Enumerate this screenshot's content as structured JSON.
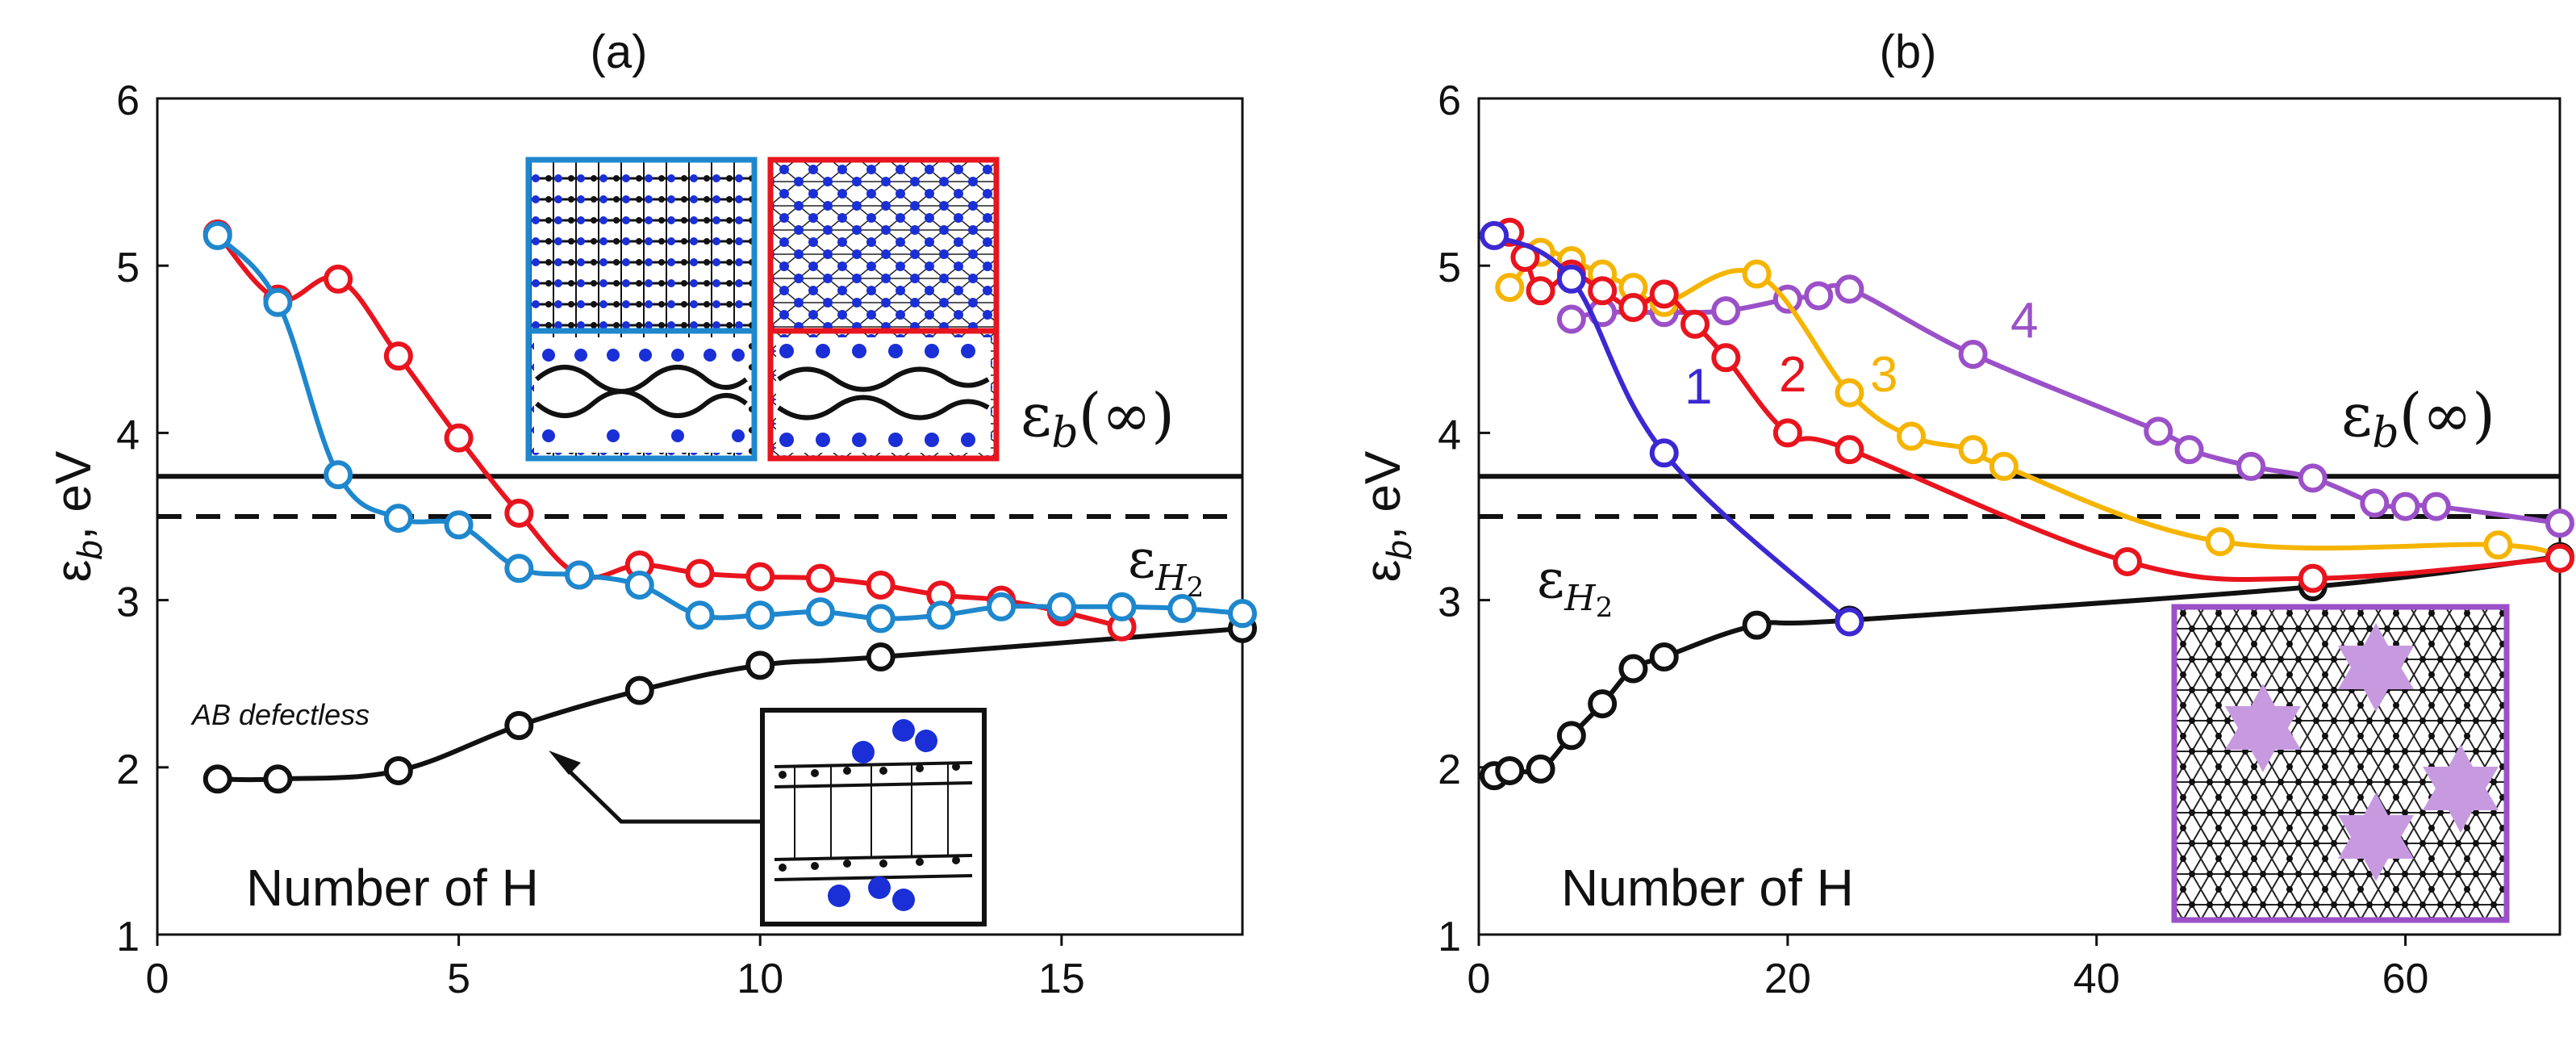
{
  "chart_data": [
    {
      "type": "line",
      "title": "(a)",
      "xlabel": "Number of H",
      "ylabel": "ε_b, eV",
      "xlim": [
        0,
        18
      ],
      "ylim": [
        1,
        6
      ],
      "xticks": [
        0,
        5,
        10,
        15
      ],
      "yticks": [
        1,
        2,
        3,
        4,
        5,
        6
      ],
      "hlines": [
        {
          "name": "eb-infinity",
          "y": 3.74,
          "style": "solid",
          "label_main": "ε",
          "label_sub": "b",
          "label_tail": "(∞)"
        },
        {
          "name": "eh2",
          "y": 3.5,
          "style": "dashed",
          "label_main": "ε",
          "label_sub": "H",
          "label_subsub": "2"
        }
      ],
      "annotation": "AB defectless",
      "series": [
        {
          "name": "red",
          "color": "#e8141e",
          "x": [
            1,
            2,
            3,
            4,
            5,
            6,
            7,
            8,
            9,
            10,
            11,
            12,
            13,
            14,
            15,
            16
          ],
          "y": [
            5.19,
            4.8,
            4.92,
            4.46,
            3.97,
            3.52,
            3.15,
            3.21,
            3.16,
            3.14,
            3.13,
            3.09,
            3.03,
            3.0,
            2.93,
            2.84
          ]
        },
        {
          "name": "blue",
          "color": "#1e87cd",
          "x": [
            1,
            2,
            3,
            4,
            5,
            6,
            7,
            8,
            9,
            10,
            11,
            12,
            13,
            14,
            15,
            16,
            17,
            18
          ],
          "y": [
            5.18,
            4.78,
            3.75,
            3.49,
            3.45,
            3.19,
            3.15,
            3.09,
            2.91,
            2.91,
            2.93,
            2.89,
            2.91,
            2.96,
            2.96,
            2.96,
            2.95,
            2.92
          ]
        },
        {
          "name": "black",
          "color": "#111111",
          "x": [
            1,
            2,
            4,
            6,
            8,
            10,
            12,
            18
          ],
          "y": [
            1.93,
            1.93,
            1.98,
            2.25,
            2.46,
            2.61,
            2.66,
            2.83
          ]
        }
      ]
    },
    {
      "type": "line",
      "title": "(b)",
      "xlabel": "Number of H",
      "ylabel": "ε_b, eV",
      "xlim": [
        0,
        70
      ],
      "ylim": [
        1,
        6
      ],
      "xticks": [
        0,
        20,
        40,
        60
      ],
      "yticks": [
        1,
        2,
        3,
        4,
        5,
        6
      ],
      "hlines": [
        {
          "name": "eb-infinity",
          "y": 3.74,
          "style": "solid",
          "label_main": "ε",
          "label_sub": "b",
          "label_tail": "(∞)"
        },
        {
          "name": "eh2",
          "y": 3.5,
          "style": "dashed",
          "label_main": "ε",
          "label_sub": "H",
          "label_subsub": "2"
        }
      ],
      "series": [
        {
          "name": "1",
          "color": "#3c28d2",
          "x": [
            1,
            6,
            12,
            24
          ],
          "y": [
            5.18,
            4.92,
            3.88,
            2.87
          ]
        },
        {
          "name": "2",
          "color": "#e8141e",
          "x": [
            2,
            3,
            4,
            6,
            8,
            10,
            12,
            14,
            16,
            20,
            24,
            42,
            54,
            70
          ],
          "y": [
            5.2,
            5.05,
            4.85,
            4.95,
            4.85,
            4.75,
            4.83,
            4.65,
            4.45,
            4.0,
            3.9,
            3.23,
            3.13,
            3.25
          ]
        },
        {
          "name": "3",
          "color": "#f5b400",
          "x": [
            2,
            4,
            6,
            8,
            10,
            12,
            18,
            24,
            28,
            32,
            34,
            48,
            66,
            70
          ],
          "y": [
            4.87,
            5.08,
            5.03,
            4.95,
            4.87,
            4.78,
            4.95,
            4.24,
            3.98,
            3.9,
            3.8,
            3.35,
            3.33,
            3.25
          ]
        },
        {
          "name": "4",
          "color": "#9b50c8",
          "x": [
            6,
            8,
            12,
            16,
            20,
            22,
            24,
            32,
            44,
            46,
            50,
            54,
            58,
            60,
            62,
            70
          ],
          "y": [
            4.68,
            4.72,
            4.72,
            4.73,
            4.8,
            4.82,
            4.86,
            4.47,
            4.01,
            3.9,
            3.8,
            3.73,
            3.58,
            3.56,
            3.56,
            3.46
          ]
        },
        {
          "name": "black",
          "color": "#111111",
          "x": [
            1,
            2,
            4,
            6,
            8,
            10,
            12,
            18,
            24,
            54,
            70
          ],
          "y": [
            1.95,
            1.98,
            1.99,
            2.19,
            2.38,
            2.59,
            2.66,
            2.85,
            2.88,
            3.08,
            3.26
          ]
        }
      ],
      "series_labels": [
        "1",
        "2",
        "3",
        "4"
      ]
    }
  ]
}
